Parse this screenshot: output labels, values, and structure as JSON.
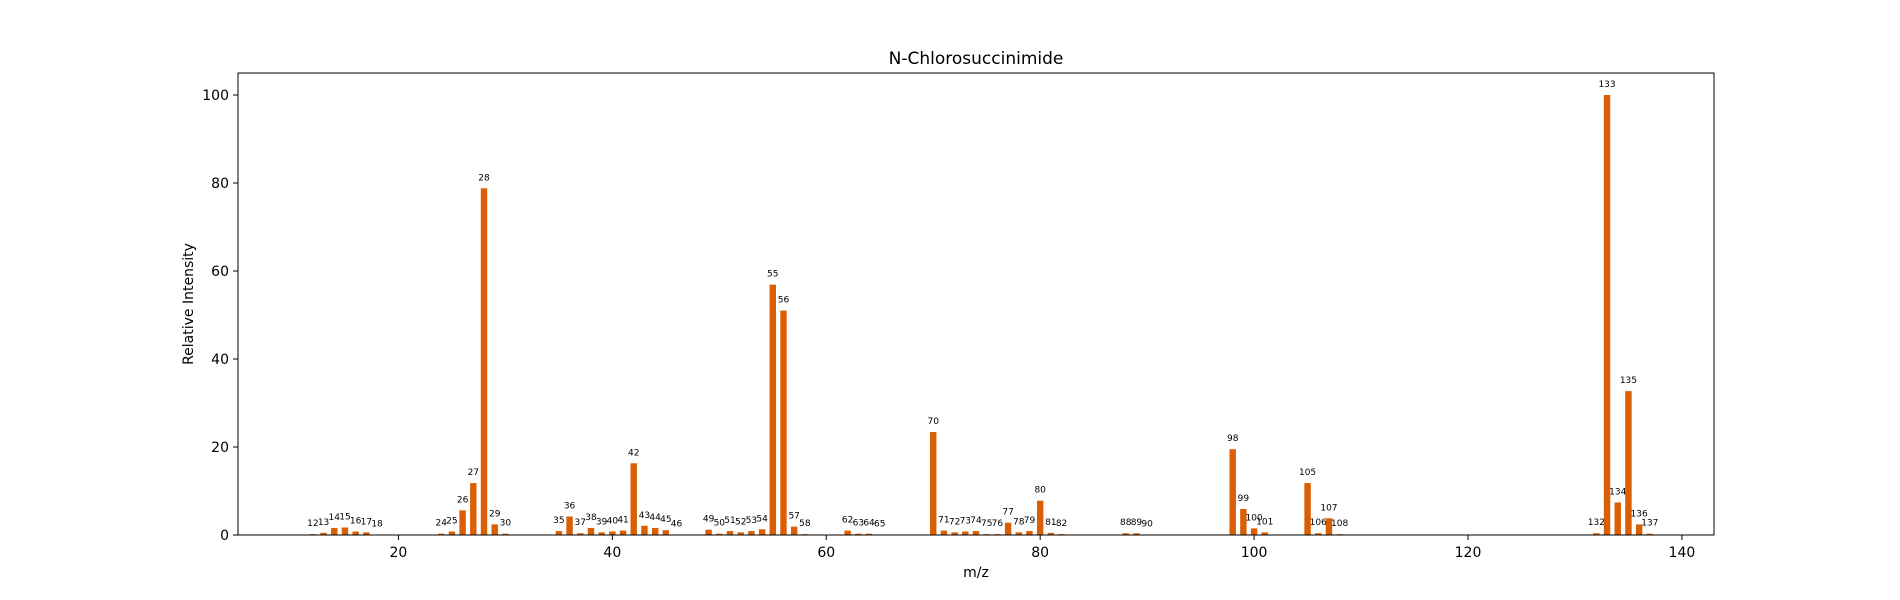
{
  "chart_data": {
    "type": "bar",
    "title": "N-Chlorosuccinimide",
    "xlabel": "m/z",
    "ylabel": "Relative Intensity",
    "xlim": [
      5,
      143
    ],
    "ylim": [
      0,
      105
    ],
    "xticks": [
      20,
      40,
      60,
      80,
      100,
      120,
      140
    ],
    "yticks": [
      0,
      20,
      40,
      60,
      80,
      100
    ],
    "bar_color": "#d95f02",
    "grid": false,
    "x": [
      12,
      13,
      14,
      15,
      16,
      17,
      18,
      24,
      25,
      26,
      27,
      28,
      29,
      30,
      35,
      36,
      37,
      38,
      39,
      40,
      41,
      42,
      43,
      44,
      45,
      46,
      49,
      50,
      51,
      52,
      53,
      54,
      55,
      56,
      57,
      58,
      62,
      63,
      64,
      65,
      70,
      71,
      72,
      73,
      74,
      75,
      76,
      77,
      78,
      79,
      80,
      81,
      82,
      88,
      89,
      90,
      98,
      99,
      100,
      101,
      105,
      106,
      107,
      108,
      132,
      133,
      134,
      135,
      136,
      137
    ],
    "values": [
      0.2,
      0.5,
      1.6,
      1.7,
      0.8,
      0.6,
      0.1,
      0.3,
      0.8,
      5.6,
      11.8,
      78.8,
      2.4,
      0.3,
      0.9,
      4.2,
      0.4,
      1.6,
      0.6,
      0.8,
      1.0,
      16.3,
      2.1,
      1.6,
      1.1,
      0.1,
      1.2,
      0.3,
      0.9,
      0.6,
      0.9,
      1.3,
      56.9,
      51.0,
      1.9,
      0.2,
      1.0,
      0.3,
      0.3,
      0.1,
      23.4,
      1.0,
      0.6,
      0.8,
      0.9,
      0.2,
      0.2,
      2.8,
      0.6,
      0.9,
      7.8,
      0.5,
      0.2,
      0.4,
      0.4,
      0.1,
      19.5,
      5.9,
      1.5,
      0.6,
      11.8,
      0.4,
      3.8,
      0.2,
      0.4,
      100.0,
      7.4,
      32.7,
      2.4,
      0.3
    ],
    "bar_labels": [
      "12",
      "13",
      "14",
      "15",
      "16",
      "17",
      "18",
      "24",
      "25",
      "26",
      "27",
      "28",
      "29",
      "30",
      "35",
      "36",
      "37",
      "38",
      "39",
      "40",
      "41",
      "42",
      "43",
      "44",
      "45",
      "46",
      "49",
      "50",
      "51",
      "52",
      "53",
      "54",
      "55",
      "56",
      "57",
      "58",
      "62",
      "63",
      "64",
      "65",
      "70",
      "71",
      "72",
      "73",
      "74",
      "75",
      "76",
      "77",
      "78",
      "79",
      "80",
      "81",
      "82",
      "88",
      "89",
      "90",
      "98",
      "99",
      "100",
      "101",
      "105",
      "106",
      "107",
      "108",
      "132",
      "133",
      "134",
      "135",
      "136",
      "137"
    ]
  }
}
